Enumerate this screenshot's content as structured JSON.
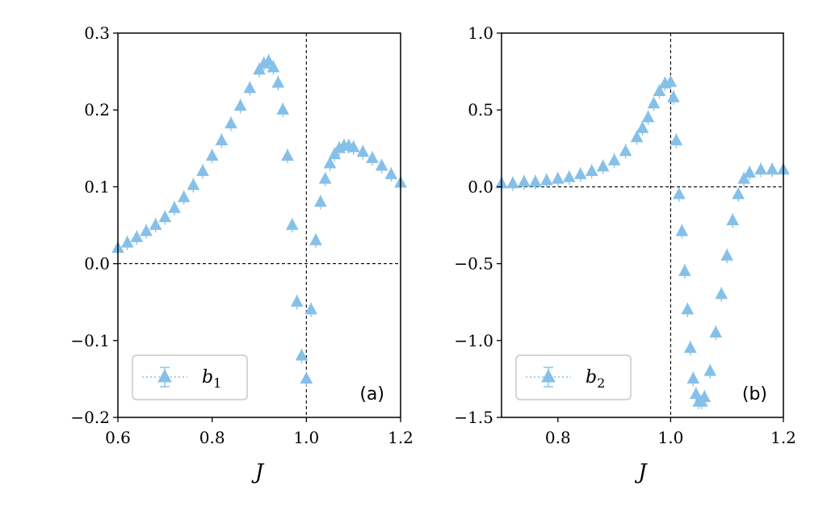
{
  "chart_data": [
    {
      "type": "scatter",
      "panel_label": "(a)",
      "xlabel": "J",
      "ylabel": "",
      "xlim": [
        0.6,
        1.2
      ],
      "ylim": [
        -0.2,
        0.3
      ],
      "xticks": [
        "0.6",
        "0.8",
        "1.0",
        "1.2"
      ],
      "yticks": [
        "−0.2",
        "−0.1",
        "0.0",
        "0.1",
        "0.2",
        "0.3"
      ],
      "reference_lines": {
        "x": 1.0,
        "y": 0.0
      },
      "legend": {
        "position": "lower-left",
        "label_base": "b",
        "label_sub": "1"
      },
      "marker": "triangle-up with error bars",
      "color": "#85c0e9",
      "grid": false,
      "series": [
        {
          "name": "b1",
          "x": [
            0.6,
            0.62,
            0.64,
            0.66,
            0.68,
            0.7,
            0.72,
            0.74,
            0.76,
            0.78,
            0.8,
            0.82,
            0.84,
            0.86,
            0.88,
            0.9,
            0.91,
            0.92,
            0.93,
            0.94,
            0.95,
            0.96,
            0.97,
            0.98,
            0.99,
            1.0,
            1.01,
            1.02,
            1.03,
            1.04,
            1.05,
            1.06,
            1.07,
            1.08,
            1.09,
            1.1,
            1.12,
            1.14,
            1.16,
            1.18,
            1.2
          ],
          "y": [
            0.02,
            0.027,
            0.034,
            0.042,
            0.05,
            0.06,
            0.072,
            0.086,
            0.102,
            0.12,
            0.14,
            0.16,
            0.182,
            0.205,
            0.228,
            0.252,
            0.26,
            0.263,
            0.255,
            0.235,
            0.2,
            0.14,
            0.05,
            -0.05,
            -0.12,
            -0.15,
            -0.06,
            0.03,
            0.08,
            0.11,
            0.13,
            0.142,
            0.15,
            0.153,
            0.153,
            0.151,
            0.145,
            0.137,
            0.127,
            0.116,
            0.105
          ]
        }
      ]
    },
    {
      "type": "scatter",
      "panel_label": "(b)",
      "xlabel": "J",
      "ylabel": "",
      "xlim": [
        0.7,
        1.2
      ],
      "ylim": [
        -1.5,
        1.0
      ],
      "xticks": [
        "0.8",
        "1.0",
        "1.2"
      ],
      "yticks": [
        "−1.5",
        "−1.0",
        "−0.5",
        "0.0",
        "0.5",
        "1.0"
      ],
      "reference_lines": {
        "x": 1.0,
        "y": 0.0
      },
      "legend": {
        "position": "lower-left",
        "label_base": "b",
        "label_sub": "2"
      },
      "marker": "triangle-up with error bars",
      "color": "#85c0e9",
      "grid": false,
      "series": [
        {
          "name": "b2",
          "x": [
            0.7,
            0.72,
            0.74,
            0.76,
            0.78,
            0.8,
            0.82,
            0.84,
            0.86,
            0.88,
            0.9,
            0.92,
            0.94,
            0.95,
            0.96,
            0.97,
            0.98,
            0.99,
            1.0,
            1.005,
            1.01,
            1.015,
            1.02,
            1.025,
            1.03,
            1.035,
            1.04,
            1.045,
            1.05,
            1.055,
            1.06,
            1.07,
            1.08,
            1.09,
            1.1,
            1.11,
            1.12,
            1.13,
            1.14,
            1.16,
            1.18,
            1.2
          ],
          "y": [
            0.02,
            0.02,
            0.03,
            0.03,
            0.04,
            0.05,
            0.06,
            0.08,
            0.1,
            0.13,
            0.17,
            0.23,
            0.32,
            0.38,
            0.45,
            0.54,
            0.62,
            0.67,
            0.68,
            0.58,
            0.3,
            -0.05,
            -0.29,
            -0.55,
            -0.8,
            -1.05,
            -1.25,
            -1.35,
            -1.4,
            -1.4,
            -1.37,
            -1.2,
            -0.95,
            -0.7,
            -0.45,
            -0.22,
            -0.05,
            0.05,
            0.09,
            0.11,
            0.11,
            0.11
          ]
        }
      ]
    }
  ]
}
